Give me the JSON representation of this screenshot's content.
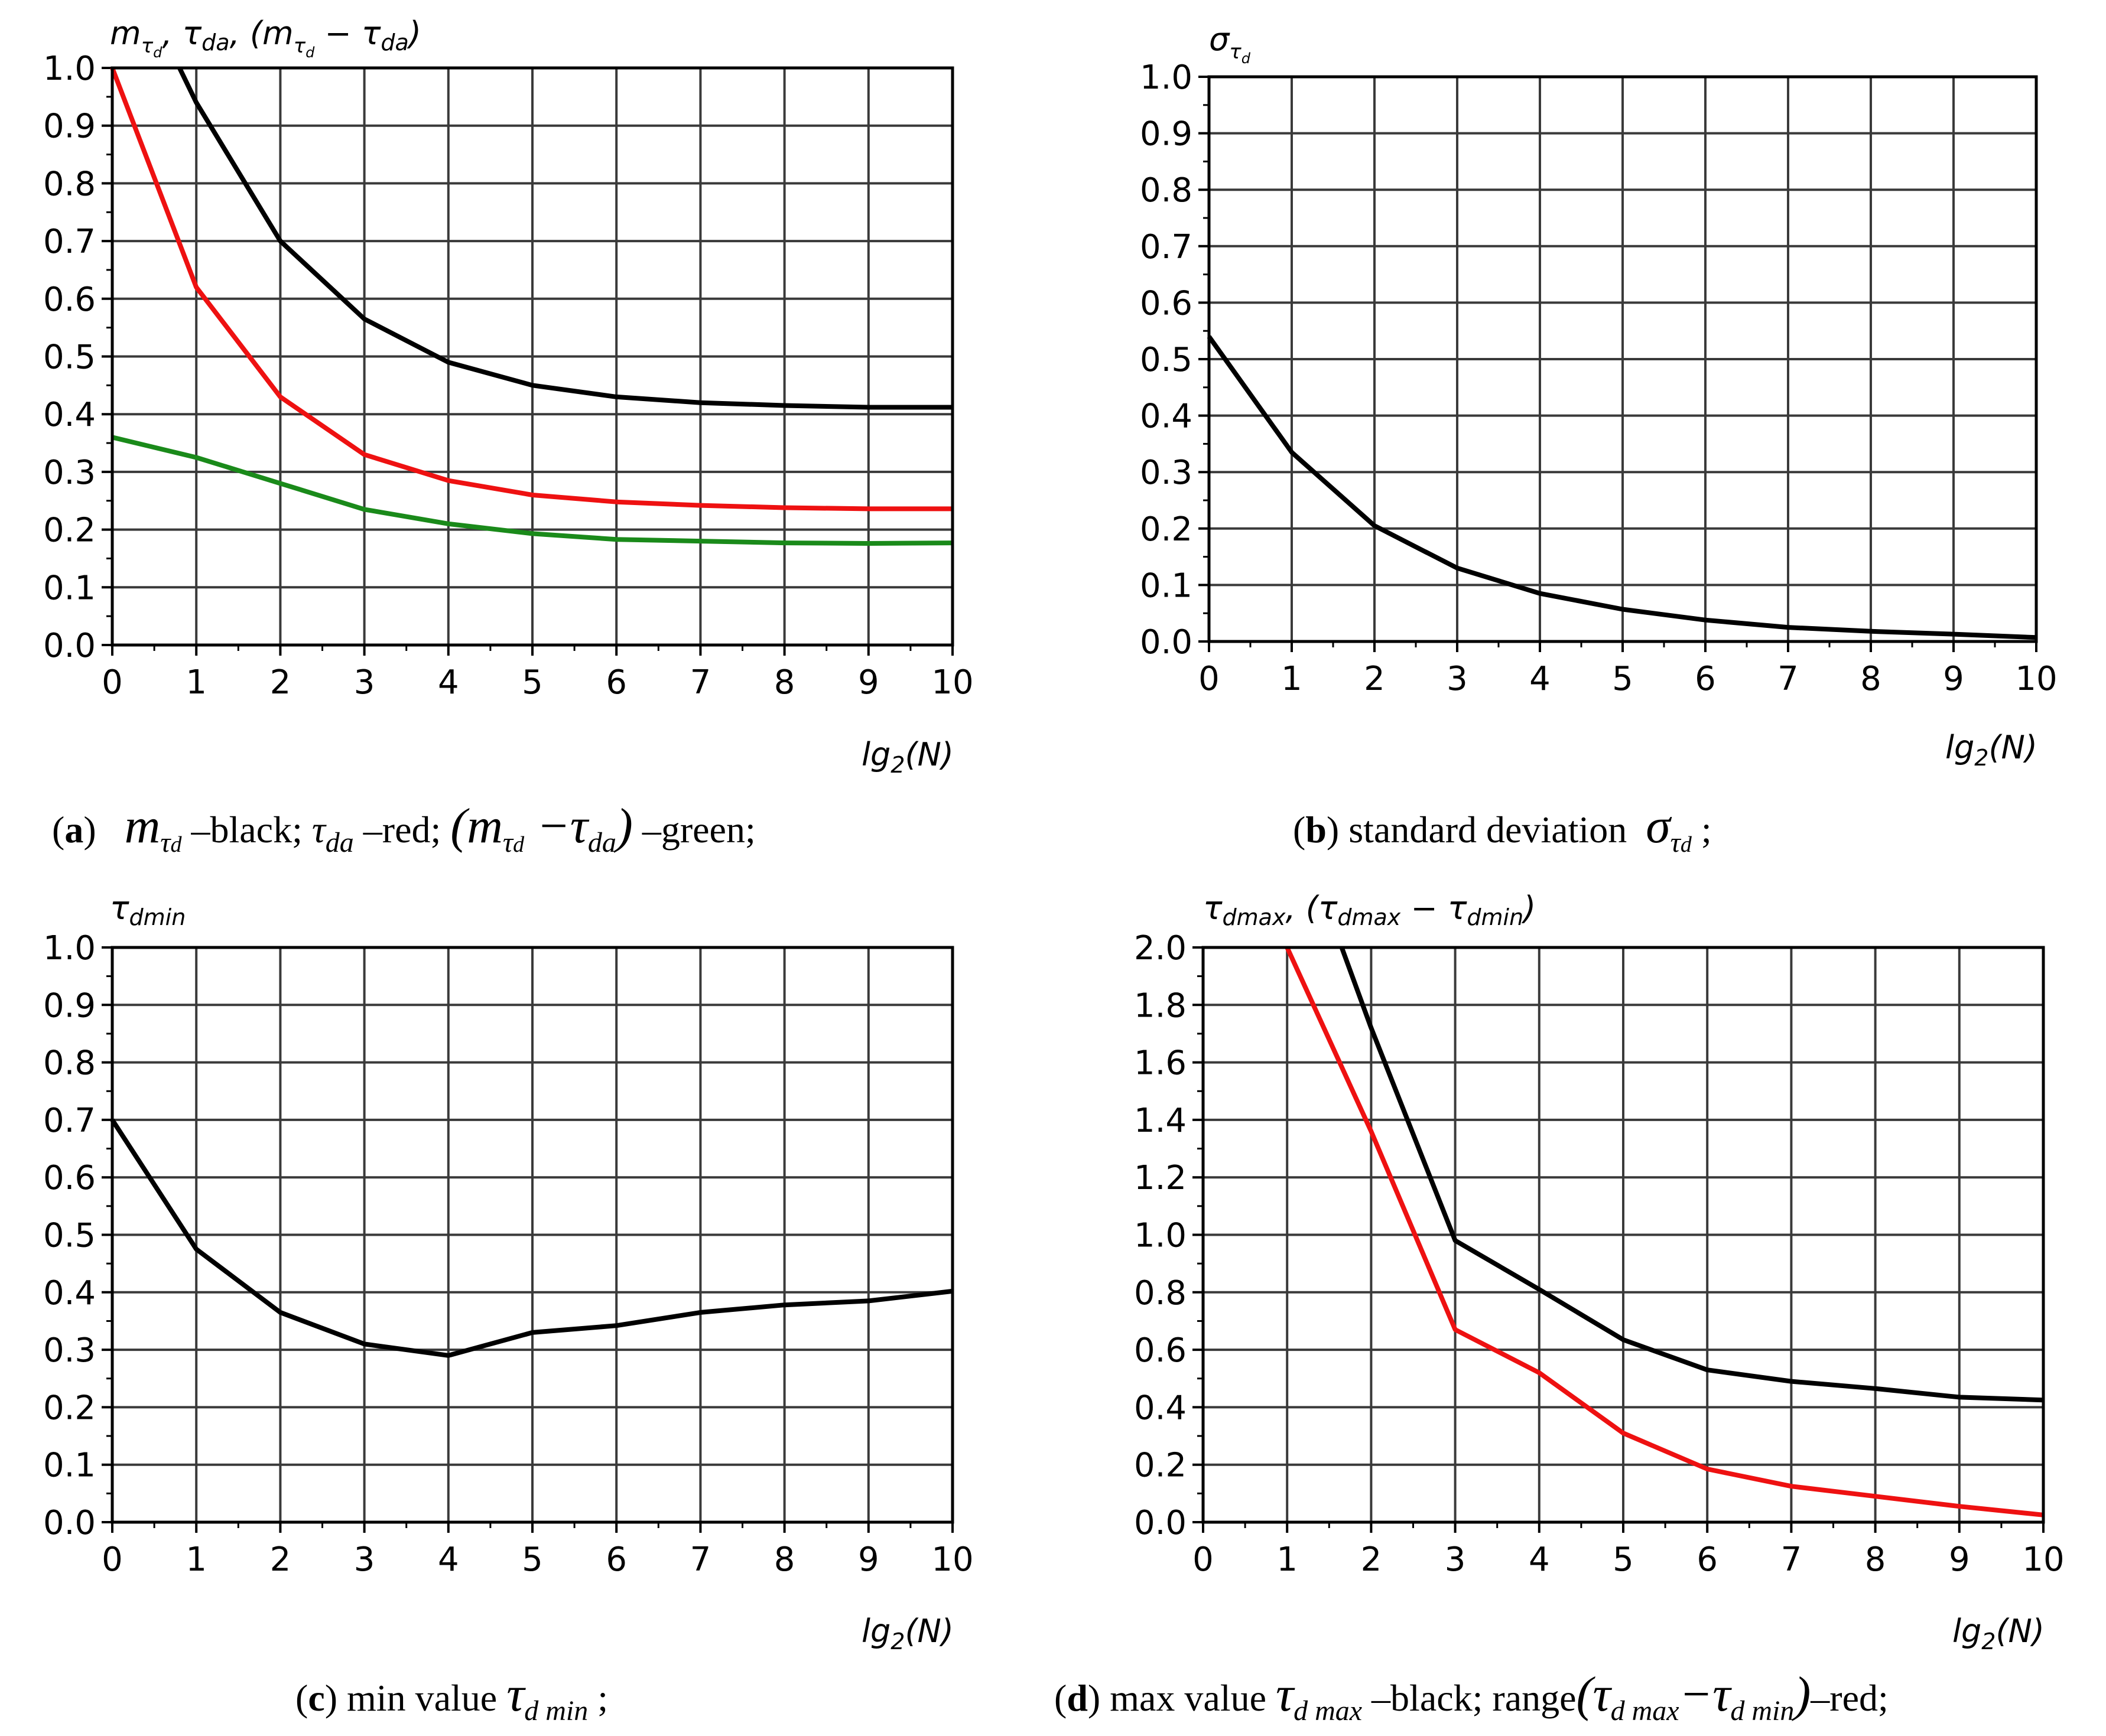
{
  "chart_data": [
    {
      "id": "a",
      "type": "line",
      "ylabel": "m_τd, τ_da, (m_τd − τ_da)",
      "xlabel": "lg2(N)",
      "xlim": [
        0,
        10
      ],
      "ylim": [
        0,
        1.0
      ],
      "xticks": [
        "0",
        "1",
        "2",
        "3",
        "4",
        "5",
        "6",
        "7",
        "8",
        "9",
        "10"
      ],
      "yticks": [
        "0.0",
        "0.1",
        "0.2",
        "0.3",
        "0.4",
        "0.5",
        "0.6",
        "0.7",
        "0.8",
        "0.9",
        "1.0"
      ],
      "grid": true,
      "series": [
        {
          "name": "m_τd",
          "color": "#000000",
          "x": [
            0.8,
            1,
            2,
            3,
            4,
            5,
            6,
            7,
            8,
            9,
            10
          ],
          "y": [
            1.0,
            0.94,
            0.7,
            0.565,
            0.49,
            0.45,
            0.43,
            0.42,
            0.415,
            0.412,
            0.412
          ]
        },
        {
          "name": "τ_da",
          "color": "#ee1111",
          "x": [
            0,
            1,
            2,
            3,
            4,
            5,
            6,
            7,
            8,
            9,
            10
          ],
          "y": [
            1.0,
            0.62,
            0.43,
            0.33,
            0.285,
            0.26,
            0.248,
            0.242,
            0.238,
            0.236,
            0.236
          ]
        },
        {
          "name": "(m_τd − τ_da)",
          "color": "#1a8a1a",
          "x": [
            0,
            1,
            2,
            3,
            4,
            5,
            6,
            7,
            8,
            9,
            10
          ],
          "y": [
            0.36,
            0.325,
            0.28,
            0.235,
            0.21,
            0.193,
            0.183,
            0.18,
            0.177,
            0.176,
            0.177
          ]
        }
      ]
    },
    {
      "id": "b",
      "type": "line",
      "ylabel": "σ_τd",
      "xlabel": "lg2(N)",
      "xlim": [
        0,
        10
      ],
      "ylim": [
        0,
        1.0
      ],
      "xticks": [
        "0",
        "1",
        "2",
        "3",
        "4",
        "5",
        "6",
        "7",
        "8",
        "9",
        "10"
      ],
      "yticks": [
        "0.0",
        "0.1",
        "0.2",
        "0.3",
        "0.4",
        "0.5",
        "0.6",
        "0.7",
        "0.8",
        "0.9",
        "1.0"
      ],
      "grid": true,
      "series": [
        {
          "name": "σ_τd",
          "color": "#000000",
          "x": [
            0,
            1,
            2,
            3,
            4,
            5,
            6,
            7,
            8,
            9,
            10
          ],
          "y": [
            0.54,
            0.335,
            0.205,
            0.13,
            0.085,
            0.057,
            0.038,
            0.025,
            0.018,
            0.013,
            0.007
          ]
        }
      ]
    },
    {
      "id": "c",
      "type": "line",
      "ylabel": "τ_dmin",
      "xlabel": "lg2(N)",
      "xlim": [
        0,
        10
      ],
      "ylim": [
        0,
        1.0
      ],
      "xticks": [
        "0",
        "1",
        "2",
        "3",
        "4",
        "5",
        "6",
        "7",
        "8",
        "9",
        "10"
      ],
      "yticks": [
        "0.0",
        "0.1",
        "0.2",
        "0.3",
        "0.4",
        "0.5",
        "0.6",
        "0.7",
        "0.8",
        "0.9",
        "1.0"
      ],
      "grid": true,
      "series": [
        {
          "name": "τ_dmin",
          "color": "#000000",
          "x": [
            0,
            1,
            2,
            3,
            4,
            5,
            6,
            7,
            8,
            9,
            10
          ],
          "y": [
            0.7,
            0.475,
            0.365,
            0.31,
            0.29,
            0.33,
            0.342,
            0.365,
            0.378,
            0.385,
            0.402
          ]
        }
      ]
    },
    {
      "id": "d",
      "type": "line",
      "ylabel": "τ_dmax, (τ_dmax − τ_dmin)",
      "xlabel": "lg2(N)",
      "xlim": [
        0,
        10
      ],
      "ylim": [
        0,
        2.0
      ],
      "xticks": [
        "0",
        "1",
        "2",
        "3",
        "4",
        "5",
        "6",
        "7",
        "8",
        "9",
        "10"
      ],
      "yticks": [
        "0.0",
        "0.2",
        "0.4",
        "0.6",
        "0.8",
        "1.0",
        "1.2",
        "1.4",
        "1.6",
        "1.8",
        "2.0"
      ],
      "grid": true,
      "series": [
        {
          "name": "τ_dmax",
          "color": "#000000",
          "x": [
            1.65,
            2,
            3,
            4,
            5,
            6,
            7,
            8,
            9,
            10
          ],
          "y": [
            2.0,
            1.72,
            0.98,
            0.81,
            0.635,
            0.53,
            0.49,
            0.465,
            0.435,
            0.425
          ]
        },
        {
          "name": "(τ_dmax − τ_dmin)",
          "color": "#ee1111",
          "x": [
            1.0,
            2,
            3,
            4,
            5,
            6,
            7,
            8,
            9,
            10
          ],
          "y": [
            2.0,
            1.36,
            0.67,
            0.52,
            0.31,
            0.185,
            0.125,
            0.09,
            0.055,
            0.025
          ]
        }
      ]
    }
  ],
  "axis_labels": {
    "a_y_m": "m",
    "a_y_sub": "τ",
    "a_y_subsub": "d",
    "a_y_rest1": ", τ",
    "a_y_da": "da",
    "a_y_rest2": ", (m",
    "a_y_minus": " − τ",
    "a_y_close": ")",
    "b_y_sigma": "σ",
    "b_y_sub": "τ",
    "b_y_subsub": "d",
    "c_y_tau": "τ",
    "c_y_sub": "dmin",
    "d_y_tau1": "τ",
    "d_y_sub1": "dmax",
    "d_y_mid": ", (τ",
    "d_y_sub2": "dmax",
    "d_y_minus": " − τ",
    "d_y_sub3": "dmin",
    "d_y_close": ")",
    "x_lg": "lg",
    "x_sub": "2",
    "x_rest": "(N)"
  },
  "captions": {
    "a_letter": "a",
    "a_m": "m",
    "a_m_sub": "τ",
    "a_m_subsub": "d",
    "a_black": " –black; ",
    "a_tau": "τ",
    "a_tau_sub": "da",
    "a_red": " –red; ",
    "a_paren": "(m",
    "a_paren_sub": "τ",
    "a_paren_subsub": "d",
    "a_paren_minus": " −τ",
    "a_paren_da": "da",
    "a_paren_close": ")",
    "a_green": " –green;",
    "b_letter": "b",
    "b_text": " standard deviation ",
    "b_sigma": "σ",
    "b_sigma_sub": "τ",
    "b_sigma_subsub": "d",
    "b_end": " ;",
    "c_letter": "c",
    "c_text": " min value ",
    "c_tau": "τ",
    "c_sub": "d min",
    "c_end": " ;",
    "d_letter": "d",
    "d_text": " max value ",
    "d_tau": "τ",
    "d_sub": "d max",
    "d_black": " –black; range",
    "d_paren": "(τ",
    "d_paren_sub1": "d max",
    "d_minus": "−τ",
    "d_paren_sub2": "d min",
    "d_close": ")",
    "d_red": "–red;"
  }
}
